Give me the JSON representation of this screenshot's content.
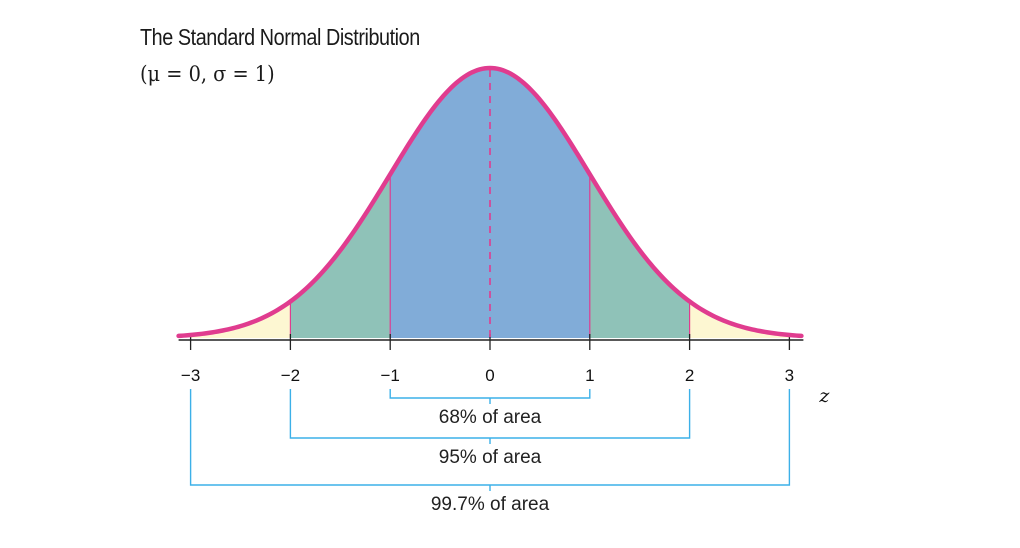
{
  "chart_data": {
    "type": "area",
    "title": "The Standard Normal Distribution",
    "subtitle": "(μ = 0, σ = 1)",
    "xlabel": "z",
    "ylabel": "",
    "xlim": [
      -3,
      3
    ],
    "function": "standard normal density",
    "mu": 0,
    "sigma": 1,
    "ticks": [
      {
        "value": -3,
        "label": "−3"
      },
      {
        "value": -2,
        "label": "−2"
      },
      {
        "value": -1,
        "label": "−1"
      },
      {
        "value": 0,
        "label": "0"
      },
      {
        "value": 1,
        "label": "1"
      },
      {
        "value": 2,
        "label": "2"
      },
      {
        "value": 3,
        "label": "3"
      }
    ],
    "regions": [
      {
        "from": -3,
        "to": -2,
        "color": "#fdf7d2"
      },
      {
        "from": -2,
        "to": -1,
        "color": "#8fc2b8"
      },
      {
        "from": -1,
        "to": 1,
        "color": "#81acd8"
      },
      {
        "from": 1,
        "to": 2,
        "color": "#8fc2b8"
      },
      {
        "from": 2,
        "to": 3,
        "color": "#fdf7d2"
      }
    ],
    "brackets": [
      {
        "from": -1,
        "to": 1,
        "label": "68% of area"
      },
      {
        "from": -2,
        "to": 2,
        "label": "95% of area"
      },
      {
        "from": -3,
        "to": 3,
        "label": "99.7% of area"
      }
    ],
    "curve_color": "#e03c8f",
    "bracket_color": "#3cb0e8"
  }
}
